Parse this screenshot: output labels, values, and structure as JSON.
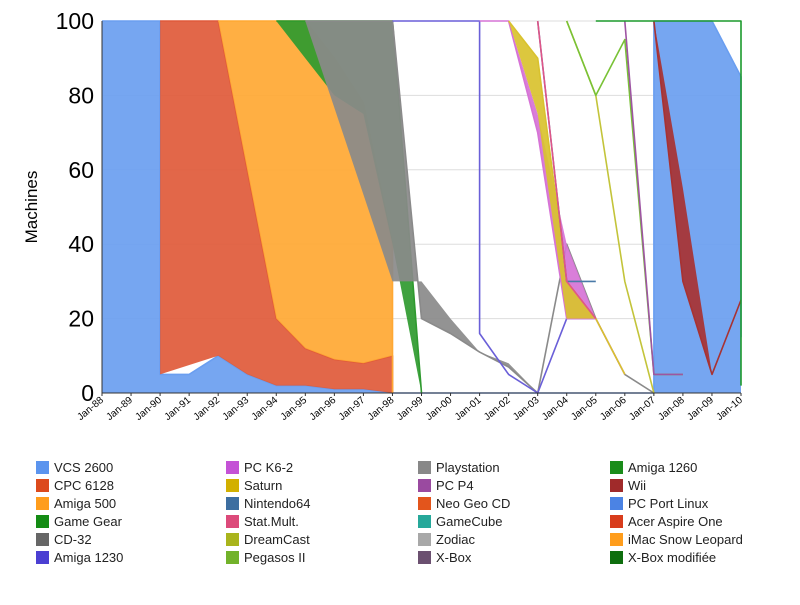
{
  "chart_data": {
    "type": "area",
    "title": "",
    "xlabel": "",
    "ylabel": "Machines",
    "ylim": [
      0,
      100
    ],
    "y_ticks": [
      "0",
      "20",
      "40",
      "60",
      "80",
      "100"
    ],
    "x_ticks": [
      "Jan-88",
      "Jan-89",
      "Jan-90",
      "Jan-91",
      "Jan-92",
      "Jan-93",
      "Jan-94",
      "Jan-95",
      "Jan-96",
      "Jan-97",
      "Jan-98",
      "Jan-99",
      "Jan-00",
      "Jan-01",
      "Jan-02",
      "Jan-03",
      "Jan-04",
      "Jan-05",
      "Jan-06",
      "Jan-07",
      "Jan-08",
      "Jan-09",
      "Jan-10"
    ],
    "grid": true,
    "legend_position": "bottom",
    "series": [
      {
        "name": "VCS 2600",
        "color": "#6a9ef0",
        "points": [
          [
            "Jan-88",
            0,
            100
          ],
          [
            "Jan-90",
            0,
            100
          ],
          [
            "Jan-90",
            0,
            5
          ],
          [
            "Jan-91",
            0,
            5
          ],
          [
            "Jan-92",
            0,
            10
          ],
          [
            "Jan-93",
            0,
            5
          ],
          [
            "Jan-94",
            0,
            2
          ],
          [
            "Jan-95",
            0,
            2
          ],
          [
            "Jan-96",
            0,
            1
          ],
          [
            "Jan-97",
            0,
            1
          ],
          [
            "Jan-98",
            0,
            0
          ],
          [
            "Jan-07",
            0,
            0
          ],
          [
            "Jan-07",
            0,
            100
          ],
          [
            "Jan-09",
            0,
            100
          ],
          [
            "Jan-10",
            0,
            85
          ],
          [
            "Jan-10",
            0,
            15
          ]
        ]
      },
      {
        "name": "CPC 6128",
        "color": "#e05a3a",
        "points": [
          [
            "Jan-90",
            5,
            100
          ],
          [
            "Jan-92",
            10,
            100
          ],
          [
            "Jan-93",
            5,
            60
          ],
          [
            "Jan-94",
            2,
            20
          ],
          [
            "Jan-95",
            2,
            12
          ],
          [
            "Jan-96",
            1,
            9
          ],
          [
            "Jan-97",
            1,
            8
          ],
          [
            "Jan-98",
            0,
            10
          ],
          [
            "Jan-98",
            0,
            0
          ]
        ]
      },
      {
        "name": "Amiga 500",
        "color": "#ffa833",
        "points": [
          [
            "Jan-92",
            100,
            100
          ],
          [
            "Jan-93",
            60,
            100
          ],
          [
            "Jan-94",
            20,
            100
          ],
          [
            "Jan-95",
            12,
            100
          ],
          [
            "Jan-96",
            9,
            90
          ],
          [
            "Jan-97",
            8,
            78
          ],
          [
            "Jan-98",
            10,
            40
          ],
          [
            "Jan-98",
            0,
            0
          ]
        ]
      },
      {
        "name": "Game Gear",
        "color": "#2f9a2f",
        "points": [
          [
            "Jan-94",
            100,
            100
          ],
          [
            "Jan-95",
            90,
            100
          ],
          [
            "Jan-96",
            80,
            100
          ],
          [
            "Jan-97",
            75,
            100
          ],
          [
            "Jan-98",
            40,
            100
          ],
          [
            "Jan-99",
            0,
            0
          ]
        ]
      },
      {
        "name": "Playstation",
        "color": "#8a8a8a",
        "points": [
          [
            "Jan-95",
            100,
            100
          ],
          [
            "Jan-98",
            30,
            100
          ],
          [
            "Jan-99",
            30,
            20
          ],
          [
            "Jan-00",
            20,
            16
          ],
          [
            "Jan-01",
            11,
            11
          ],
          [
            "Jan-02",
            8,
            7
          ],
          [
            "Jan-03",
            0,
            0
          ],
          [
            "Jan-04",
            40,
            40
          ],
          [
            "Jan-05",
            20,
            20
          ],
          [
            "Jan-06",
            5,
            5
          ],
          [
            "Jan-07",
            0,
            0
          ]
        ]
      },
      {
        "name": "Amiga 1230",
        "color": "#6a5fd8",
        "points": [
          [
            "Jan-98",
            100,
            100
          ],
          [
            "Jan-01",
            100,
            100
          ],
          [
            "Jan-01",
            16,
            16
          ],
          [
            "Jan-02",
            5,
            5
          ],
          [
            "Jan-03",
            0,
            0
          ],
          [
            "Jan-04",
            20,
            20
          ],
          [
            "Jan-05",
            20,
            20
          ]
        ]
      },
      {
        "name": "PC K6-2",
        "color": "#d673d6",
        "points": [
          [
            "Jan-01",
            100,
            100
          ],
          [
            "Jan-02",
            100,
            100
          ],
          [
            "Jan-03",
            75,
            70
          ],
          [
            "Jan-04",
            40,
            20
          ],
          [
            "Jan-05",
            20,
            20
          ],
          [
            "Jan-06",
            5,
            5
          ]
        ]
      },
      {
        "name": "Saturn",
        "color": "#d9c22e",
        "points": [
          [
            "Jan-02",
            100,
            100
          ],
          [
            "Jan-03",
            75,
            90
          ],
          [
            "Jan-04",
            20,
            30
          ],
          [
            "Jan-05",
            20,
            20
          ],
          [
            "Jan-06",
            5,
            5
          ]
        ]
      },
      {
        "name": "Nintendo64",
        "color": "#4a7aa8",
        "points": [
          [
            "Jan-03",
            100,
            100
          ],
          [
            "Jan-04",
            30,
            30
          ],
          [
            "Jan-05",
            30,
            30
          ]
        ]
      },
      {
        "name": "Stat.Mult.",
        "color": "#e05588",
        "points": [
          [
            "Jan-03",
            100,
            100
          ],
          [
            "Jan-04",
            30,
            30
          ],
          [
            "Jan-05",
            20,
            20
          ]
        ]
      },
      {
        "name": "DreamCast",
        "color": "#c3c43a",
        "points": [
          [
            "Jan-04",
            100,
            100
          ],
          [
            "Jan-05",
            80,
            80
          ],
          [
            "Jan-06",
            30,
            30
          ],
          [
            "Jan-07",
            0,
            0
          ]
        ]
      },
      {
        "name": "Pegasos II",
        "color": "#79c236",
        "points": [
          [
            "Jan-04",
            100,
            100
          ],
          [
            "Jan-05",
            80,
            80
          ],
          [
            "Jan-06",
            95,
            95
          ],
          [
            "Jan-07",
            5,
            5
          ],
          [
            "Jan-08",
            5,
            5
          ]
        ]
      },
      {
        "name": "PC P4",
        "color": "#9e55a3",
        "points": [
          [
            "Jan-06",
            100,
            100
          ],
          [
            "Jan-07",
            5,
            5
          ],
          [
            "Jan-08",
            5,
            5
          ]
        ]
      },
      {
        "name": "Wii",
        "color": "#a83232",
        "points": [
          [
            "Jan-07",
            100,
            100
          ],
          [
            "Jan-08",
            55,
            30
          ],
          [
            "Jan-09",
            5,
            5
          ],
          [
            "Jan-10",
            25,
            25
          ]
        ]
      },
      {
        "name": "Amiga 1260",
        "color": "#1c9a2c",
        "points": [
          [
            "Jan-05",
            100,
            100
          ],
          [
            "Jan-10",
            100,
            100
          ],
          [
            "Jan-10",
            5,
            2
          ]
        ]
      }
    ],
    "legend": [
      {
        "name": "VCS 2600",
        "color": "#5b94ee"
      },
      {
        "name": "CPC 6128",
        "color": "#dc4a1c"
      },
      {
        "name": "Amiga 500",
        "color": "#ff9d1c"
      },
      {
        "name": "Game Gear",
        "color": "#148c14"
      },
      {
        "name": "CD-32",
        "color": "#666666"
      },
      {
        "name": "Amiga 1230",
        "color": "#4b3fd2"
      },
      {
        "name": "PC K6-2",
        "color": "#c452d6"
      },
      {
        "name": "Saturn",
        "color": "#d2b000"
      },
      {
        "name": "Nintendo64",
        "color": "#3d6ea0"
      },
      {
        "name": "Stat.Mult.",
        "color": "#dc4a7a"
      },
      {
        "name": "DreamCast",
        "color": "#a9b41c"
      },
      {
        "name": "Pegasos II",
        "color": "#72b22a"
      },
      {
        "name": "Playstation",
        "color": "#888888"
      },
      {
        "name": "PC P4",
        "color": "#9a4aa0"
      },
      {
        "name": "Neo Geo CD",
        "color": "#e3551c"
      },
      {
        "name": "GameCube",
        "color": "#26a89a"
      },
      {
        "name": "Zodiac",
        "color": "#a8a8a8"
      },
      {
        "name": "X-Box",
        "color": "#6b5070"
      },
      {
        "name": "Amiga 1260",
        "color": "#1a8c1a"
      },
      {
        "name": "Wii",
        "color": "#a02a2a"
      },
      {
        "name": "PC Port Linux",
        "color": "#4b83e4"
      },
      {
        "name": "Acer Aspire One",
        "color": "#d83c1c"
      },
      {
        "name": "iMac Snow Leopard",
        "color": "#ff9d1c"
      },
      {
        "name": "X-Box modifiée",
        "color": "#0e6e0e"
      }
    ]
  }
}
